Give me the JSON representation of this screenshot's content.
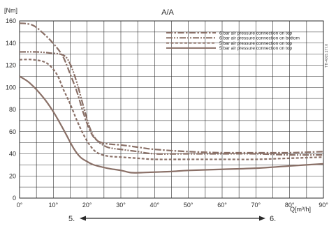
{
  "chart_data": {
    "type": "line",
    "title": "A/A",
    "ylabel": "[Nm]",
    "xlabel": "Q[m³/h]",
    "ylim": [
      0,
      160
    ],
    "xlim": [
      0,
      90
    ],
    "yticks": [
      "0",
      "20",
      "40",
      "60",
      "80",
      "100",
      "120",
      "140",
      "160"
    ],
    "xticks": [
      "0°",
      "10°",
      "20°",
      "30°",
      "40°",
      "50°",
      "60°",
      "70°",
      "80°",
      "90°"
    ],
    "grid": true,
    "legend_position": "top-right",
    "series": [
      {
        "name": "6 bar air pressure connection on top",
        "style": "dashdot",
        "color": "#8a7067",
        "points": [
          [
            0,
            158
          ],
          [
            4,
            156
          ],
          [
            8,
            146
          ],
          [
            11,
            136
          ],
          [
            13,
            127
          ],
          [
            15,
            112
          ],
          [
            17,
            96
          ],
          [
            19,
            76
          ],
          [
            21,
            60
          ],
          [
            23,
            52
          ],
          [
            26,
            49
          ],
          [
            30,
            48
          ],
          [
            35,
            46
          ],
          [
            40,
            44
          ],
          [
            50,
            42
          ],
          [
            60,
            41
          ],
          [
            70,
            41
          ],
          [
            80,
            41
          ],
          [
            90,
            42
          ]
        ]
      },
      {
        "name": "6 bar air pressure connection on bottom",
        "style": "dashdotdot",
        "color": "#8a7067",
        "points": [
          [
            0,
            132
          ],
          [
            5,
            132
          ],
          [
            9,
            131
          ],
          [
            13,
            129
          ],
          [
            15,
            121
          ],
          [
            17,
            104
          ],
          [
            19,
            82
          ],
          [
            21,
            62
          ],
          [
            23,
            52
          ],
          [
            26,
            46
          ],
          [
            30,
            44
          ],
          [
            35,
            42
          ],
          [
            40,
            40
          ],
          [
            50,
            40
          ],
          [
            60,
            40
          ],
          [
            70,
            40
          ],
          [
            80,
            39
          ],
          [
            90,
            39
          ]
        ]
      },
      {
        "name": "5 bar air pressure connection on top",
        "style": "dash",
        "color": "#8a7067",
        "points": [
          [
            0,
            125
          ],
          [
            4,
            125
          ],
          [
            8,
            122
          ],
          [
            11,
            112
          ],
          [
            13,
            98
          ],
          [
            15,
            85
          ],
          [
            17,
            70
          ],
          [
            19,
            57
          ],
          [
            21,
            47
          ],
          [
            23,
            41
          ],
          [
            26,
            38
          ],
          [
            30,
            37
          ],
          [
            35,
            36
          ],
          [
            40,
            35
          ],
          [
            50,
            35
          ],
          [
            60,
            35
          ],
          [
            70,
            35
          ],
          [
            80,
            36
          ],
          [
            90,
            37
          ]
        ]
      },
      {
        "name": "5 bar air pressure connection on top",
        "style": "solid",
        "color": "#8a7067",
        "points": [
          [
            0,
            110
          ],
          [
            3,
            104
          ],
          [
            7,
            91
          ],
          [
            10,
            78
          ],
          [
            13,
            62
          ],
          [
            16,
            45
          ],
          [
            18,
            37
          ],
          [
            20,
            33
          ],
          [
            22,
            30
          ],
          [
            26,
            27
          ],
          [
            30,
            25
          ],
          [
            33,
            23
          ],
          [
            36,
            23
          ],
          [
            40,
            23.5
          ],
          [
            45,
            24
          ],
          [
            50,
            25
          ],
          [
            60,
            26
          ],
          [
            70,
            27
          ],
          [
            80,
            29
          ],
          [
            90,
            31
          ]
        ]
      }
    ],
    "annotations": {
      "side_code": "TTI-4015.177.0",
      "position_start": "5.",
      "position_end": "6."
    }
  }
}
